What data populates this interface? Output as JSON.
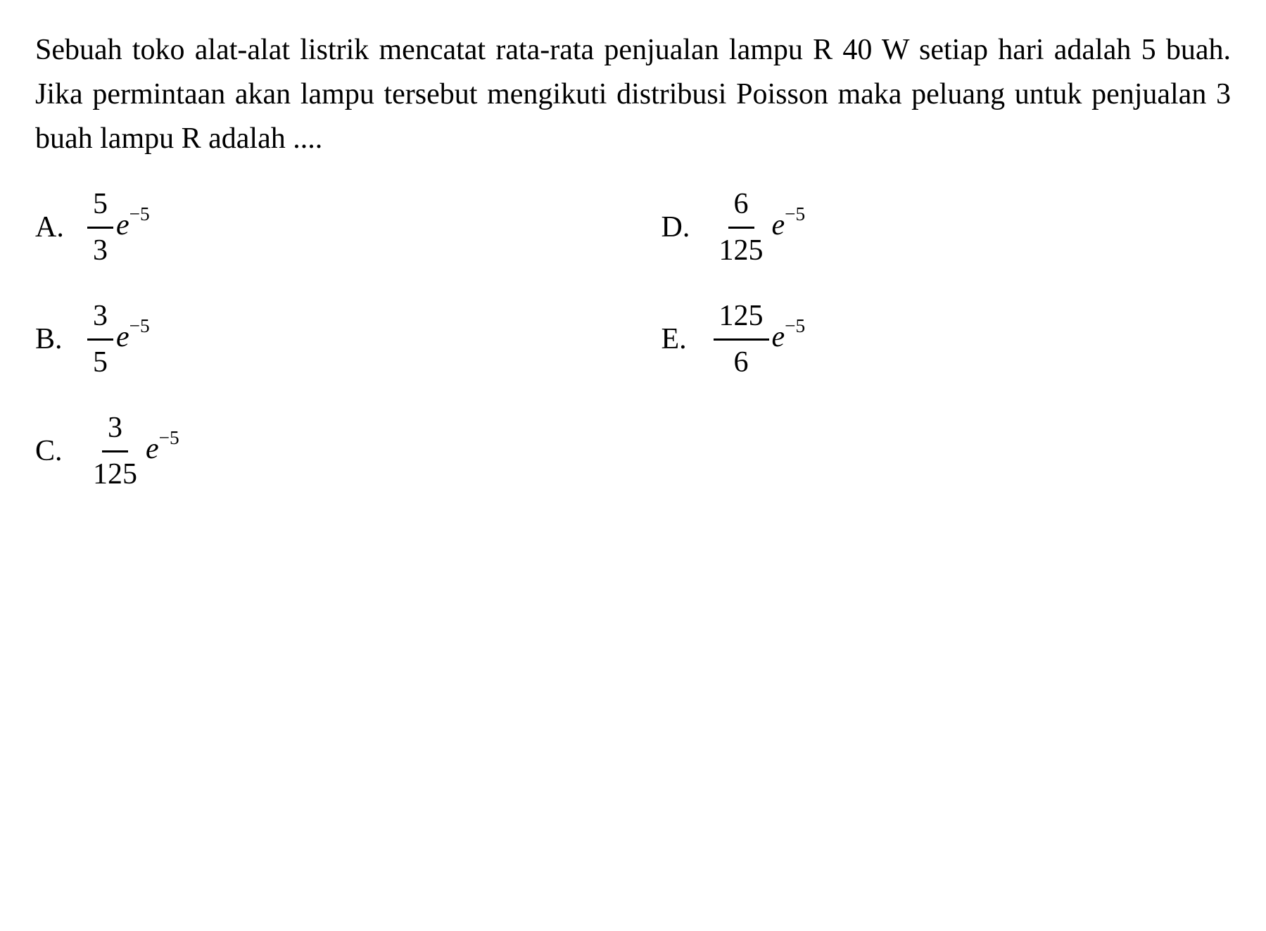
{
  "question": {
    "text": "Sebuah toko alat-alat listrik mencatat rata-rata penjualan lampu R 40 W setiap hari adalah 5 buah. Jika permintaan akan lampu tersebut mengikuti distribusi Poisson maka peluang untuk penjualan 3 buah lampu R adalah ...."
  },
  "options": {
    "a": {
      "label": "A.",
      "numerator": "5",
      "denominator": "3",
      "exp_base": "e",
      "exp_power": "−5"
    },
    "b": {
      "label": "B.",
      "numerator": "3",
      "denominator": "5",
      "exp_base": "e",
      "exp_power": "−5"
    },
    "c": {
      "label": "C.",
      "numerator": "3",
      "denominator": "125",
      "exp_base": "e",
      "exp_power": "−5"
    },
    "d": {
      "label": "D.",
      "numerator": "6",
      "denominator": "125",
      "exp_base": "e",
      "exp_power": "−5"
    },
    "e": {
      "label": "E.",
      "numerator": "125",
      "denominator": "6",
      "exp_base": "e",
      "exp_power": "−5"
    }
  },
  "styling": {
    "font_family": "Times New Roman",
    "font_size_pt": 42,
    "text_color": "#000000",
    "background_color": "#ffffff",
    "fraction_bar_width": 3
  }
}
